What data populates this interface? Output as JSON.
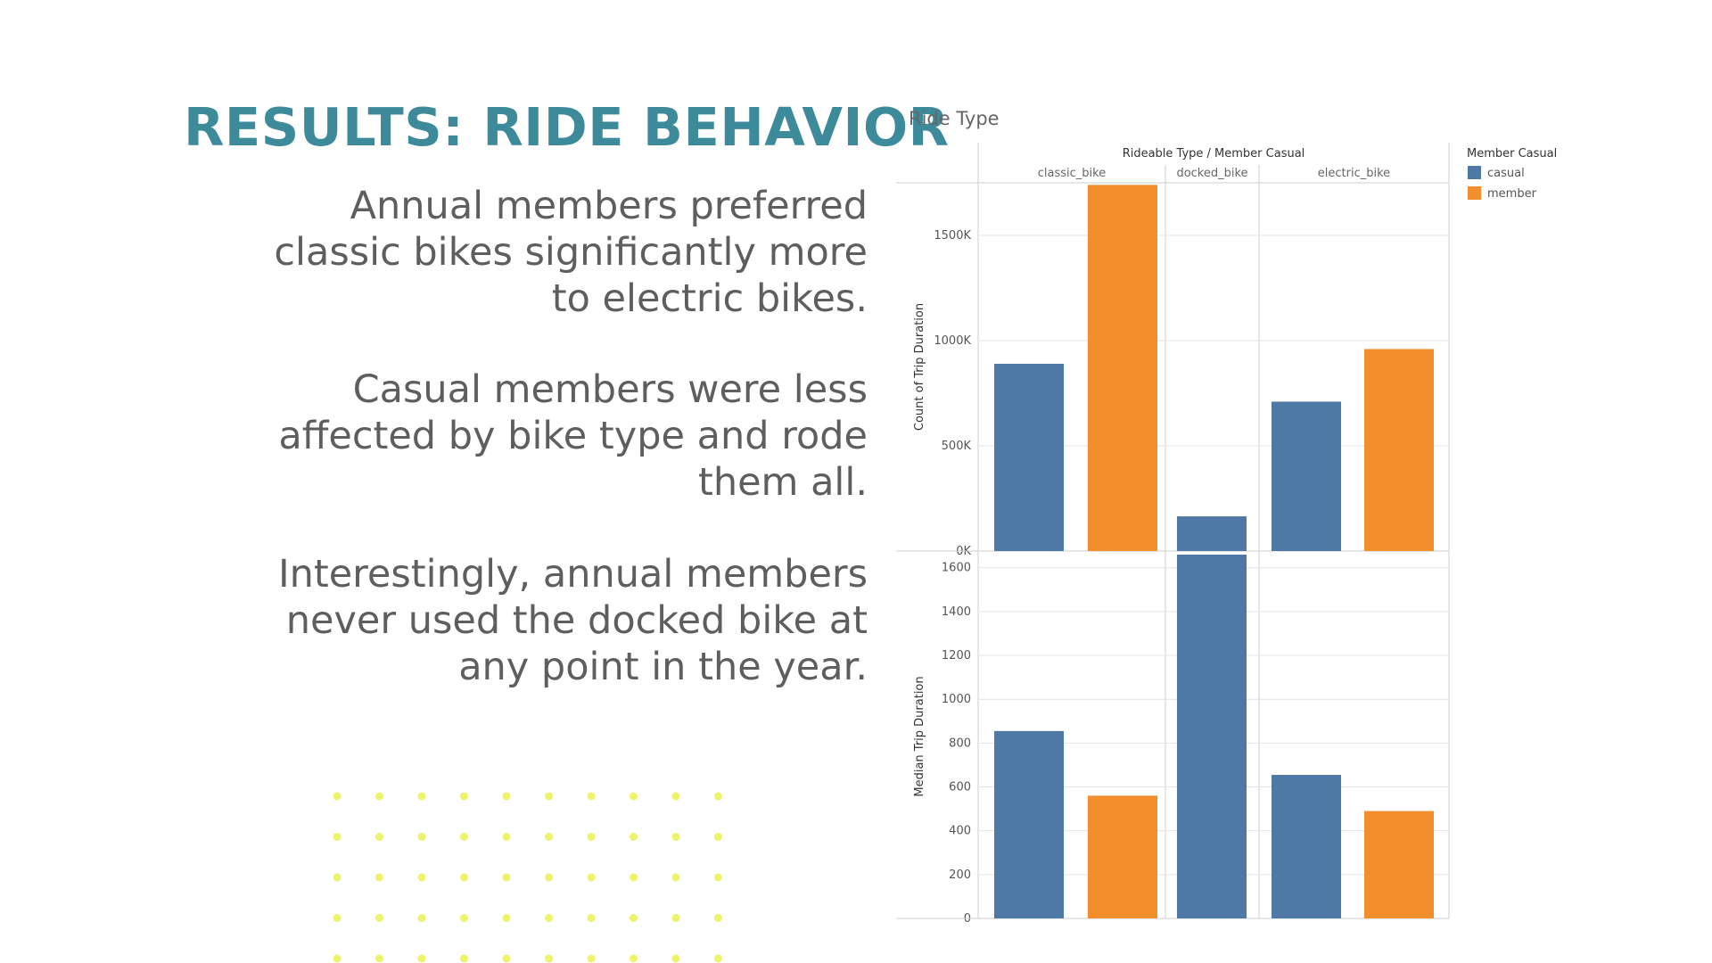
{
  "slide": {
    "title": "RESULTS: RIDE BEHAVIOR",
    "paragraphs": [
      [
        "Annual members preferred",
        "classic bikes significantly more",
        "to electric bikes."
      ],
      [
        "Casual members were less",
        "affected by bike type and rode",
        "them all."
      ],
      [
        "Interestingly, annual members",
        "never used the docked bike at",
        "any point in the year."
      ]
    ],
    "title_color": "#3d8a9b",
    "dot_color": "#eef36a"
  },
  "chart_data": {
    "type": "bar",
    "title": "Ride Type",
    "column_header": "Rideable Type / Member Casual",
    "categories": [
      "classic_bike",
      "docked_bike",
      "electric_bike"
    ],
    "legend": {
      "title": "Member Casual",
      "placement": "top-right",
      "entries": [
        {
          "name": "casual",
          "color": "#4e79a7"
        },
        {
          "name": "member",
          "color": "#f28e2b"
        }
      ]
    },
    "panels": [
      {
        "ylabel": "Count of Trip Duration",
        "ylim": [
          0,
          1750000
        ],
        "ticks": [
          0,
          500000,
          1000000,
          1500000
        ],
        "tick_labels": [
          "0K",
          "500K",
          "1000K",
          "1500K"
        ],
        "series": [
          {
            "name": "casual",
            "values": [
              890000,
              165000,
              710000
            ]
          },
          {
            "name": "member",
            "values": [
              1740000,
              null,
              960000
            ]
          }
        ]
      },
      {
        "ylabel": "Median Trip Duration",
        "ylim": [
          0,
          1660
        ],
        "ticks": [
          0,
          200,
          400,
          600,
          800,
          1000,
          1200,
          1400,
          1600
        ],
        "tick_labels": [
          "0",
          "200",
          "400",
          "600",
          "800",
          "1000",
          "1200",
          "1400",
          "1600"
        ],
        "series": [
          {
            "name": "casual",
            "values": [
              855,
              1660,
              655
            ]
          },
          {
            "name": "member",
            "values": [
              560,
              null,
              490
            ]
          }
        ]
      }
    ]
  }
}
